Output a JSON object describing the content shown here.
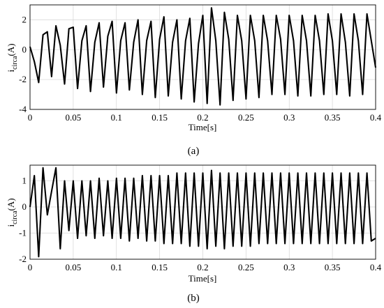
{
  "chart_data": [
    {
      "type": "line",
      "caption": "(a)",
      "xlabel": "Time[s]",
      "ylabel_main": "i",
      "ylabel_sub": "circa",
      "ylabel_unit": "(A)",
      "xlim": [
        0,
        0.4
      ],
      "ylim": [
        -4,
        3
      ],
      "xticks": [
        0,
        0.05,
        0.1,
        0.15,
        0.2,
        0.25,
        0.3,
        0.35,
        0.4
      ],
      "xtick_labels": [
        "0",
        "0.05",
        "0.1",
        "0.15",
        "0.2",
        "0.25",
        "0.3",
        "0.35",
        "0.4"
      ],
      "yticks": [
        -4,
        -2,
        0,
        2
      ],
      "ytick_labels": [
        "-4",
        "-2",
        "0",
        "2"
      ],
      "grid": true,
      "series": [
        {
          "description": "distorted periodic waveform, ~25 Hz fundamental with ripple",
          "x": [
            0,
            0.005,
            0.01,
            0.015,
            0.02,
            0.025,
            0.03,
            0.035,
            0.04,
            0.045,
            0.05,
            0.055,
            0.06,
            0.065,
            0.07,
            0.075,
            0.08,
            0.085,
            0.09,
            0.095,
            0.1,
            0.105,
            0.11,
            0.115,
            0.12,
            0.125,
            0.13,
            0.135,
            0.14,
            0.145,
            0.15,
            0.155,
            0.16,
            0.165,
            0.17,
            0.175,
            0.18,
            0.185,
            0.19,
            0.195,
            0.2,
            0.205,
            0.21,
            0.215,
            0.22,
            0.225,
            0.23,
            0.235,
            0.24,
            0.245,
            0.25,
            0.255,
            0.26,
            0.265,
            0.27,
            0.275,
            0.28,
            0.285,
            0.29,
            0.295,
            0.3,
            0.305,
            0.31,
            0.315,
            0.32,
            0.325,
            0.33,
            0.335,
            0.34,
            0.345,
            0.35,
            0.355,
            0.36,
            0.365,
            0.37,
            0.375,
            0.38,
            0.385,
            0.39,
            0.395,
            0.4
          ],
          "y": [
            0.2,
            -0.8,
            -2.2,
            1.0,
            1.2,
            -1.8,
            1.6,
            0.3,
            -2.3,
            1.4,
            1.5,
            -2.6,
            0.6,
            1.6,
            -2.8,
            0.5,
            1.8,
            -2.5,
            0.9,
            1.9,
            -2.9,
            0.6,
            1.8,
            -2.7,
            0.5,
            2.0,
            -3.0,
            0.6,
            1.9,
            -3.2,
            0.7,
            2.2,
            -3.1,
            0.5,
            2.0,
            -3.3,
            0.6,
            2.1,
            -3.5,
            0.4,
            2.3,
            -3.6,
            2.8,
            0.6,
            -3.7,
            2.5,
            0.7,
            -3.4,
            2.3,
            0.6,
            -3.3,
            2.3,
            0.6,
            -3.2,
            2.3,
            0.6,
            -3.0,
            2.3,
            0.7,
            -3.0,
            2.3,
            0.6,
            -3.1,
            2.3,
            0.6,
            -3.1,
            2.3,
            0.6,
            -3.0,
            2.4,
            0.6,
            -3.0,
            2.4,
            0.5,
            -3.1,
            2.4,
            0.6,
            -3.0,
            2.4,
            0.6,
            -1.2
          ]
        }
      ]
    },
    {
      "type": "line",
      "caption": "(b)",
      "xlabel": "Time[s]",
      "ylabel_main": "i",
      "ylabel_sub": "circa",
      "ylabel_unit": "(A)",
      "xlim": [
        0,
        0.4
      ],
      "ylim": [
        -2,
        1.6
      ],
      "xticks": [
        0,
        0.05,
        0.1,
        0.15,
        0.2,
        0.25,
        0.3,
        0.35,
        0.4
      ],
      "xtick_labels": [
        "0",
        "0.05",
        "0.1",
        "0.15",
        "0.2",
        "0.25",
        "0.3",
        "0.35",
        "0.4"
      ],
      "yticks": [
        -2,
        -1,
        0,
        1
      ],
      "ytick_labels": [
        "-2",
        "-1",
        "0",
        "1"
      ],
      "grid": true,
      "series": [
        {
          "description": "near-sinusoidal waveform, ~105 Hz, amplitude ~1.3 A",
          "x": [
            0,
            0.005,
            0.01,
            0.015,
            0.02,
            0.025,
            0.03,
            0.035,
            0.04,
            0.045,
            0.05,
            0.055,
            0.06,
            0.065,
            0.07,
            0.075,
            0.08,
            0.085,
            0.09,
            0.095,
            0.1,
            0.105,
            0.11,
            0.115,
            0.12,
            0.125,
            0.13,
            0.135,
            0.14,
            0.145,
            0.15,
            0.155,
            0.16,
            0.165,
            0.17,
            0.175,
            0.18,
            0.185,
            0.19,
            0.195,
            0.2,
            0.205,
            0.21,
            0.215,
            0.22,
            0.225,
            0.23,
            0.235,
            0.24,
            0.245,
            0.25,
            0.255,
            0.26,
            0.265,
            0.27,
            0.275,
            0.28,
            0.285,
            0.29,
            0.295,
            0.3,
            0.305,
            0.31,
            0.315,
            0.32,
            0.325,
            0.33,
            0.335,
            0.34,
            0.345,
            0.35,
            0.355,
            0.36,
            0.365,
            0.37,
            0.375,
            0.38,
            0.385,
            0.39,
            0.395,
            0.4
          ],
          "y": [
            0.0,
            1.2,
            -1.9,
            1.5,
            -0.3,
            0.6,
            1.5,
            -1.6,
            1.0,
            -0.9,
            1.0,
            -1.2,
            1.0,
            -1.1,
            1.0,
            -1.2,
            1.1,
            -1.1,
            1.0,
            -1.2,
            1.1,
            -1.2,
            1.1,
            -1.3,
            1.1,
            -1.2,
            1.2,
            -1.3,
            1.2,
            -1.3,
            1.2,
            -1.4,
            1.2,
            -1.4,
            1.3,
            -1.4,
            1.3,
            -1.5,
            1.3,
            -1.5,
            1.3,
            -1.6,
            1.4,
            -1.5,
            1.3,
            -1.6,
            1.3,
            -1.5,
            1.3,
            -1.5,
            1.3,
            -1.5,
            1.3,
            -1.4,
            1.3,
            -1.4,
            1.3,
            -1.4,
            1.3,
            -1.4,
            1.3,
            -1.4,
            1.3,
            -1.4,
            1.3,
            -1.4,
            1.3,
            -1.4,
            1.3,
            -1.4,
            1.3,
            -1.4,
            1.3,
            -1.4,
            1.3,
            -1.4,
            1.3,
            -1.4,
            1.3,
            -1.3,
            -1.2
          ]
        }
      ]
    }
  ]
}
